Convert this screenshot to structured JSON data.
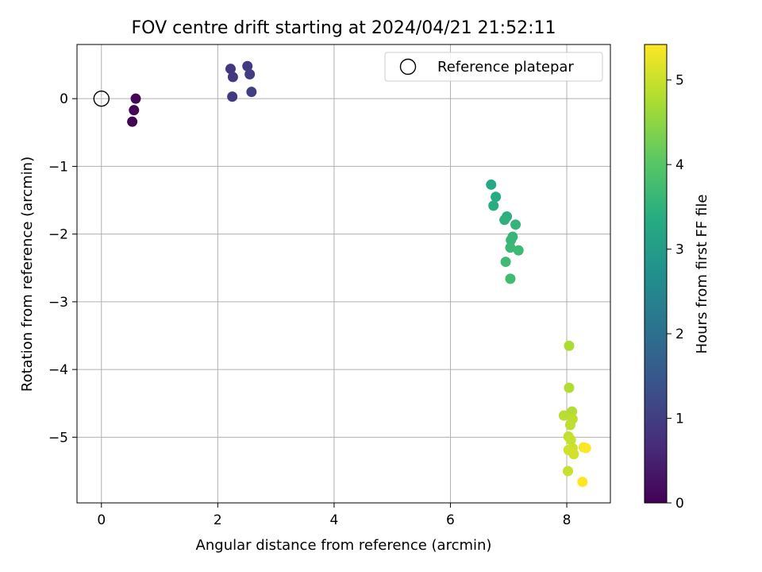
{
  "chart_data": {
    "type": "scatter",
    "title": "FOV centre drift starting at 2024/04/21 21:52:11",
    "xlabel": "Angular distance from reference (arcmin)",
    "ylabel": "Rotation from reference (arcmin)",
    "xlim": [
      -0.42,
      8.75
    ],
    "ylim": [
      -5.97,
      0.8
    ],
    "x_ticks": [
      0,
      2,
      4,
      6,
      8
    ],
    "y_ticks": [
      0,
      -1,
      -2,
      -3,
      -4,
      -5
    ],
    "x_tick_labels": [
      "0",
      "2",
      "4",
      "6",
      "8"
    ],
    "y_tick_labels": [
      "0",
      "−1",
      "−2",
      "−3",
      "−4",
      "−5"
    ],
    "grid": true,
    "legend": {
      "placement": "top-right",
      "entries": [
        "Reference platepar"
      ]
    },
    "reference_point": {
      "x": 0,
      "y": 0,
      "label": "Reference platepar"
    },
    "colorbar": {
      "label": "Hours from first FF file",
      "range": [
        0,
        5.42
      ],
      "ticks": [
        0,
        1,
        2,
        3,
        4,
        5
      ],
      "tick_labels": [
        "0",
        "1",
        "2",
        "3",
        "4",
        "5"
      ],
      "colormap": "viridis"
    },
    "points": [
      {
        "x": 0.53,
        "y": -0.34,
        "c": 0.02
      },
      {
        "x": 0.56,
        "y": -0.17,
        "c": 0.05
      },
      {
        "x": 0.59,
        "y": 0.0,
        "c": 0.08
      },
      {
        "x": 2.22,
        "y": 0.44,
        "c": 0.9
      },
      {
        "x": 2.26,
        "y": 0.32,
        "c": 0.92
      },
      {
        "x": 2.25,
        "y": 0.03,
        "c": 0.94
      },
      {
        "x": 2.51,
        "y": 0.48,
        "c": 0.96
      },
      {
        "x": 2.55,
        "y": 0.36,
        "c": 0.98
      },
      {
        "x": 2.58,
        "y": 0.1,
        "c": 1.0
      },
      {
        "x": 6.7,
        "y": -1.27,
        "c": 3.3
      },
      {
        "x": 6.78,
        "y": -1.45,
        "c": 3.35
      },
      {
        "x": 6.74,
        "y": -1.58,
        "c": 3.4
      },
      {
        "x": 6.97,
        "y": -1.74,
        "c": 3.45
      },
      {
        "x": 6.93,
        "y": -1.79,
        "c": 3.5
      },
      {
        "x": 7.12,
        "y": -1.86,
        "c": 3.55
      },
      {
        "x": 7.07,
        "y": -2.04,
        "c": 3.6
      },
      {
        "x": 7.04,
        "y": -2.09,
        "c": 3.62
      },
      {
        "x": 7.03,
        "y": -2.2,
        "c": 3.65
      },
      {
        "x": 7.17,
        "y": -2.24,
        "c": 3.68
      },
      {
        "x": 6.95,
        "y": -2.41,
        "c": 3.7
      },
      {
        "x": 7.03,
        "y": -2.66,
        "c": 3.72
      },
      {
        "x": 8.04,
        "y": -3.65,
        "c": 4.75
      },
      {
        "x": 8.04,
        "y": -4.27,
        "c": 4.78
      },
      {
        "x": 8.09,
        "y": -4.62,
        "c": 4.82
      },
      {
        "x": 7.95,
        "y": -4.68,
        "c": 4.85
      },
      {
        "x": 8.1,
        "y": -4.73,
        "c": 4.88
      },
      {
        "x": 8.06,
        "y": -4.82,
        "c": 4.9
      },
      {
        "x": 8.03,
        "y": -4.99,
        "c": 4.93
      },
      {
        "x": 8.07,
        "y": -5.04,
        "c": 4.96
      },
      {
        "x": 8.1,
        "y": -5.16,
        "c": 5.0
      },
      {
        "x": 8.03,
        "y": -5.19,
        "c": 5.04
      },
      {
        "x": 8.12,
        "y": -5.25,
        "c": 5.08
      },
      {
        "x": 8.29,
        "y": -5.15,
        "c": 5.35
      },
      {
        "x": 8.33,
        "y": -5.16,
        "c": 5.4
      },
      {
        "x": 8.02,
        "y": -5.5,
        "c": 4.98
      },
      {
        "x": 8.27,
        "y": -5.66,
        "c": 5.42
      }
    ]
  }
}
